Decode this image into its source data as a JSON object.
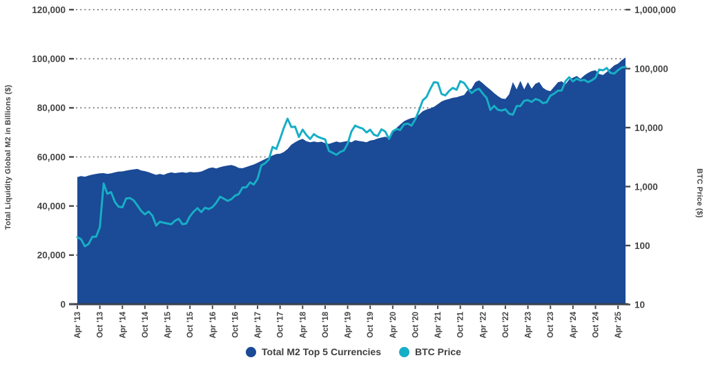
{
  "left_axis": {
    "title": "Total Liquidity Global M2 in Billions ($)",
    "tick_labels": [
      "120,000",
      "100,000",
      "80,000",
      "60,000",
      "40,000",
      "20,000",
      "0"
    ],
    "tick_values": [
      120000,
      100000,
      80000,
      60000,
      40000,
      20000,
      0
    ],
    "ylim": [
      0,
      120000
    ]
  },
  "right_axis": {
    "title": "BTC Price ($)",
    "tick_labels": [
      "1,000,000",
      "100,000",
      "10,000",
      "1,000",
      "100",
      "10"
    ],
    "tick_values": [
      1000000,
      100000,
      10000,
      1000,
      100,
      10
    ],
    "scale": "log",
    "ylim": [
      10,
      1000000
    ]
  },
  "x_axis": {
    "tick_labels": [
      "Apr '13",
      "Oct '13",
      "Apr '14",
      "Oct '14",
      "Apr '15",
      "Oct '15",
      "Apr '16",
      "Oct '16",
      "Apr '17",
      "Oct '17",
      "Apr '18",
      "Oct '18",
      "Apr '19",
      "Oct '19",
      "Apr '20",
      "Oct '20",
      "Apr '21",
      "Oct '21",
      "Apr '22",
      "Oct '22",
      "Apr '23",
      "Oct '23",
      "Apr '24",
      "Oct '24",
      "Apr '25"
    ],
    "tick_every_months": 6
  },
  "legend": {
    "items": [
      {
        "label": "Total M2 Top 5 Currencies",
        "color": "#1B4A96"
      },
      {
        "label": "BTC Price",
        "color": "#17AEC6"
      }
    ]
  },
  "colors": {
    "m2_fill": "#1B4A96",
    "btc_line": "#17AEC6",
    "grid": "#7d7d7d",
    "axis_line": "#39414F",
    "tick_mark": "#4a4a4a",
    "text": "#454545",
    "background": "#ffffff"
  },
  "chart_data": {
    "type": "area+line",
    "x_start": "2013-04",
    "x_end": "2025-06",
    "x_frequency": "monthly",
    "grid": "dotted horizontal at left-axis ticks",
    "legend_position": "bottom-center",
    "series": [
      {
        "name": "Total M2 Top 5 Currencies",
        "type": "area",
        "axis": "left",
        "color": "#1B4A96",
        "values": [
          51800,
          52200,
          51900,
          52400,
          52800,
          53100,
          53300,
          53400,
          53100,
          53300,
          53700,
          54000,
          54100,
          54400,
          54700,
          54900,
          55100,
          54500,
          54200,
          53800,
          53200,
          52700,
          53100,
          52700,
          53300,
          53700,
          53400,
          53600,
          53800,
          53500,
          53900,
          53700,
          53800,
          54000,
          54700,
          55400,
          55700,
          55300,
          55800,
          56200,
          56500,
          56700,
          56300,
          55500,
          55400,
          55900,
          56400,
          56900,
          57600,
          58400,
          59100,
          59900,
          60600,
          61200,
          61300,
          62000,
          63200,
          65000,
          66000,
          66800,
          67400,
          66400,
          66000,
          66300,
          66000,
          66200,
          65600,
          65300,
          65800,
          66300,
          65900,
          66200,
          66500,
          66000,
          66800,
          66500,
          66300,
          66000,
          66700,
          66900,
          67500,
          67900,
          68200,
          67800,
          70000,
          71800,
          73200,
          74500,
          75300,
          75800,
          76100,
          77200,
          78600,
          79300,
          79800,
          80400,
          81500,
          82600,
          83200,
          83600,
          84100,
          84300,
          84800,
          85200,
          87300,
          87800,
          90500,
          91200,
          90000,
          88600,
          87400,
          86000,
          84800,
          83800,
          83600,
          85500,
          90500,
          87500,
          91000,
          87500,
          90500,
          87800,
          89800,
          90500,
          88200,
          87200,
          86800,
          88600,
          90400,
          90800,
          89600,
          91500,
          92300,
          93000,
          91800,
          93200,
          94200,
          95000,
          95300,
          93800,
          93400,
          94600,
          95900,
          97300,
          98000,
          99400,
          100500
        ]
      },
      {
        "name": "BTC Price",
        "type": "line",
        "axis": "right",
        "color": "#17AEC6",
        "values": [
          139,
          128,
          97,
          106,
          141,
          141,
          204,
          1127,
          754,
          806,
          550,
          454,
          446,
          627,
          640,
          583,
          478,
          387,
          338,
          378,
          320,
          218,
          254,
          244,
          236,
          230,
          263,
          284,
          230,
          236,
          314,
          377,
          430,
          369,
          437,
          416,
          448,
          531,
          673,
          624,
          573,
          610,
          700,
          745,
          964,
          970,
          1180,
          1080,
          1347,
          2286,
          2480,
          2875,
          4703,
          4338,
          6468,
          9916,
          14156,
          10221,
          10397,
          6938,
          9240,
          7494,
          6404,
          7735,
          7011,
          6625,
          6317,
          4017,
          3743,
          3457,
          3854,
          4105,
          5350,
          8574,
          10817,
          10085,
          9630,
          8293,
          9199,
          7569,
          7193,
          9350,
          8599,
          6438,
          8658,
          9461,
          9137,
          11323,
          11680,
          10784,
          13797,
          19625,
          28996,
          33114,
          45240,
          58919,
          57750,
          37253,
          35041,
          41626,
          47166,
          43791,
          61319,
          57006,
          46307,
          38483,
          43193,
          45539,
          37714,
          31792,
          19985,
          23337,
          20050,
          19432,
          20490,
          17168,
          16548,
          23139,
          23147,
          28478,
          29268,
          27219,
          30477,
          29230,
          25932,
          26967,
          34656,
          37718,
          42265,
          42580,
          61199,
          71334,
          60637,
          67481,
          62678,
          64619,
          58970,
          63330,
          70215,
          96449,
          93429,
          102405,
          84349,
          82549,
          94207,
          104600,
          107000
        ]
      }
    ]
  }
}
